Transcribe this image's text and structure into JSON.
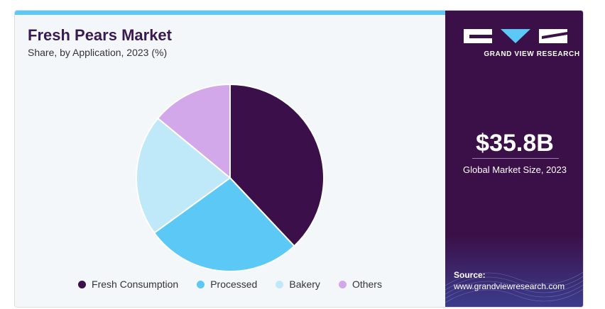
{
  "header": {
    "title": "Fresh Pears Market",
    "subtitle": "Share, by Application, 2023 (%)"
  },
  "chart_data": {
    "type": "pie",
    "categories": [
      "Fresh Consumption",
      "Processed",
      "Bakery",
      "Others"
    ],
    "values": [
      38,
      27,
      21,
      14
    ],
    "colors": [
      "#3a0f4a",
      "#5bc8f5",
      "#bfe9f9",
      "#d3a8ea"
    ],
    "legend_position": "bottom"
  },
  "sidebar": {
    "brand": "GRAND VIEW RESEARCH",
    "market_size_value": "$35.8B",
    "market_size_label": "Global Market Size, 2023",
    "source_title": "Source:",
    "source_url": "www.grandviewresearch.com"
  }
}
